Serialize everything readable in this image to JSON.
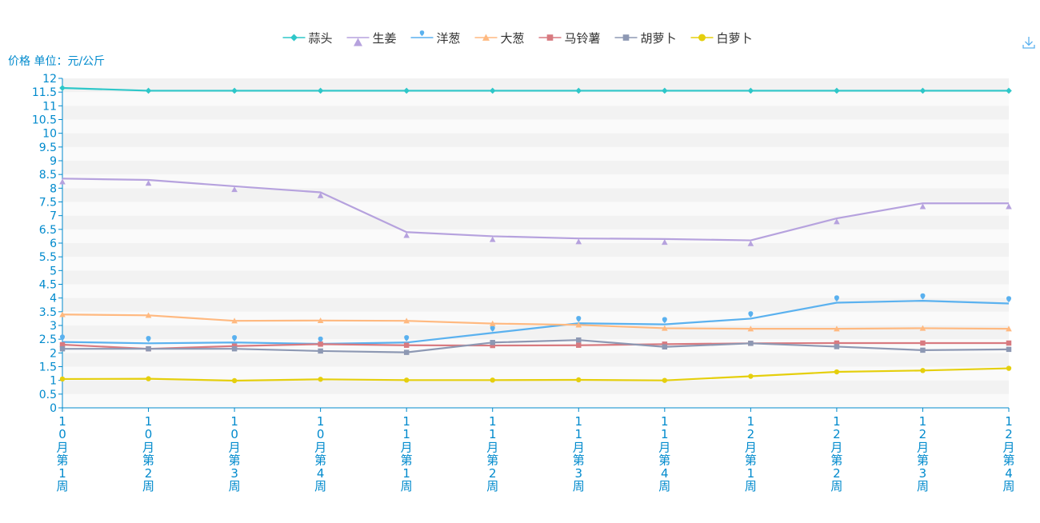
{
  "toolbox": {
    "download_icon": "download-icon"
  },
  "chart_data": {
    "type": "line",
    "title": "",
    "ylabel": "价格 单位：元/公斤",
    "xlabel": "",
    "ylim": [
      0,
      12
    ],
    "ytick_step": 0.5,
    "yticks": [
      "0",
      "0.5",
      "1",
      "1.5",
      "2",
      "2.5",
      "3",
      "3.5",
      "4",
      "4.5",
      "5",
      "5.5",
      "6",
      "6.5",
      "7",
      "7.5",
      "8",
      "8.5",
      "9",
      "9.5",
      "10",
      "10.5",
      "11",
      "11.5",
      "12"
    ],
    "grid": "alternating-bands",
    "legend": "top-center",
    "categories": [
      "10月第1周",
      "10月第2周",
      "10月第3周",
      "10月第4周",
      "11月第1周",
      "11月第2周",
      "11月第3周",
      "11月第4周",
      "12月第1周",
      "12月第2周",
      "12月第3周",
      "12月第4周"
    ],
    "series": [
      {
        "name": "蒜头",
        "color": "#2ec7c9",
        "marker": "diamond",
        "values": [
          11.65,
          11.55,
          11.55,
          11.55,
          11.55,
          11.55,
          11.55,
          11.55,
          11.55,
          11.55,
          11.55,
          11.55
        ]
      },
      {
        "name": "生姜",
        "color": "#b6a2de",
        "marker": "triangle",
        "values": [
          8.35,
          8.3,
          8.07,
          7.85,
          6.4,
          6.25,
          6.17,
          6.15,
          6.1,
          6.9,
          7.45,
          7.45
        ]
      },
      {
        "name": "洋葱",
        "color": "#5ab1ef",
        "marker": "pin",
        "values": [
          2.4,
          2.35,
          2.38,
          2.33,
          2.38,
          2.73,
          3.08,
          3.04,
          3.25,
          3.83,
          3.9,
          3.8
        ]
      },
      {
        "name": "大葱",
        "color": "#ffb980",
        "marker": "triangle",
        "values": [
          3.4,
          3.37,
          3.17,
          3.18,
          3.17,
          3.07,
          3.02,
          2.9,
          2.88,
          2.88,
          2.9,
          2.88
        ]
      },
      {
        "name": "马铃薯",
        "color": "#d87a80",
        "marker": "rect",
        "values": [
          2.3,
          2.15,
          2.25,
          2.32,
          2.28,
          2.27,
          2.28,
          2.32,
          2.35,
          2.36,
          2.36,
          2.36
        ]
      },
      {
        "name": "胡萝卜",
        "color": "#8d98b3",
        "marker": "rect",
        "values": [
          2.15,
          2.15,
          2.15,
          2.07,
          2.02,
          2.38,
          2.47,
          2.22,
          2.35,
          2.23,
          2.1,
          2.13
        ]
      },
      {
        "name": "白萝卜",
        "color": "#e5cf0d",
        "marker": "circle",
        "values": [
          1.05,
          1.06,
          0.99,
          1.04,
          1.01,
          1.01,
          1.02,
          1.0,
          1.15,
          1.31,
          1.36,
          1.44
        ]
      }
    ]
  }
}
